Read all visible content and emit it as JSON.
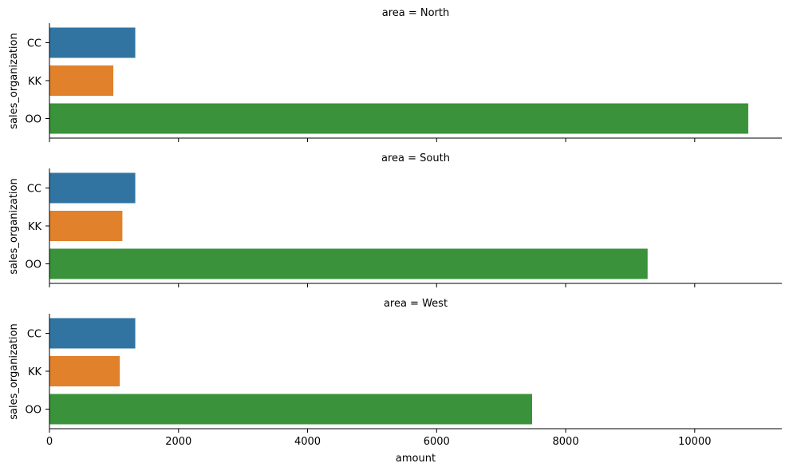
{
  "chart_data": [
    {
      "type": "bar",
      "orientation": "horizontal",
      "title": "area = North",
      "ylabel": "sales_organization",
      "xlabel": "",
      "categories": [
        "CC",
        "KK",
        "OO"
      ],
      "values": [
        1330,
        990,
        10830
      ],
      "xlim": [
        0,
        11350
      ],
      "xticks": [
        0,
        2000,
        4000,
        6000,
        8000,
        10000
      ],
      "show_tick_labels": false
    },
    {
      "type": "bar",
      "orientation": "horizontal",
      "title": "area = South",
      "ylabel": "sales_organization",
      "xlabel": "",
      "categories": [
        "CC",
        "KK",
        "OO"
      ],
      "values": [
        1330,
        1130,
        9270
      ],
      "xlim": [
        0,
        11350
      ],
      "xticks": [
        0,
        2000,
        4000,
        6000,
        8000,
        10000
      ],
      "show_tick_labels": false
    },
    {
      "type": "bar",
      "orientation": "horizontal",
      "title": "area = West",
      "ylabel": "sales_organization",
      "xlabel": "amount",
      "categories": [
        "CC",
        "KK",
        "OO"
      ],
      "values": [
        1330,
        1090,
        7480
      ],
      "xlim": [
        0,
        11350
      ],
      "xticks": [
        0,
        2000,
        4000,
        6000,
        8000,
        10000
      ],
      "xtick_labels": [
        "0",
        "2000",
        "4000",
        "6000",
        "8000",
        "10000"
      ],
      "show_tick_labels": true
    }
  ],
  "colors": {
    "CC": "#3274a1",
    "KK": "#e1812c",
    "OO": "#3a923a"
  },
  "grid": false,
  "legend": "none"
}
